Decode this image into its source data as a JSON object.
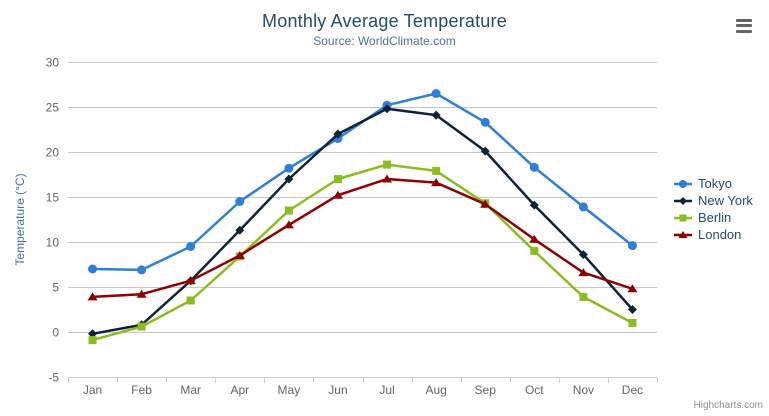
{
  "header": {
    "title": "Monthly Average Temperature",
    "subtitle": "Source: WorldClimate.com"
  },
  "credit": "Highcharts.com",
  "menu_icon": "hamburger-menu-icon",
  "colors": {
    "title_text": "#274b6d",
    "subtitle_text": "#4d759e",
    "axis_title_text": "#4572a7",
    "axis_label_text": "#666666",
    "legend_text": "#274b6d",
    "grid_line": "#c8c8c8",
    "axis_line": "#c0d0e0",
    "credit_text": "#909090",
    "menu_icon_color": "#666666"
  },
  "chart_data": {
    "type": "line",
    "title": "Monthly Average Temperature",
    "subtitle": "Source: WorldClimate.com",
    "categories": [
      "Jan",
      "Feb",
      "Mar",
      "Apr",
      "May",
      "Jun",
      "Jul",
      "Aug",
      "Sep",
      "Oct",
      "Nov",
      "Dec"
    ],
    "xlabel": "",
    "ylabel": "Temperature (°C)",
    "ylim": [
      -5,
      30
    ],
    "ytick_step": 5,
    "yticks": [
      -5,
      0,
      5,
      10,
      15,
      20,
      25,
      30
    ],
    "grid": true,
    "legend_position": "right",
    "series": [
      {
        "name": "Tokyo",
        "color": "#2f7ed8",
        "marker": "circle",
        "values": [
          7.0,
          6.9,
          9.5,
          14.5,
          18.2,
          21.5,
          25.2,
          26.5,
          23.3,
          18.3,
          13.9,
          9.6
        ]
      },
      {
        "name": "New York",
        "color": "#0d233a",
        "marker": "diamond",
        "values": [
          -0.2,
          0.8,
          5.7,
          11.3,
          17.0,
          22.0,
          24.8,
          24.1,
          20.1,
          14.1,
          8.6,
          2.5
        ]
      },
      {
        "name": "Berlin",
        "color": "#8bbc21",
        "marker": "square",
        "values": [
          -0.9,
          0.6,
          3.5,
          8.4,
          13.5,
          17.0,
          18.6,
          17.9,
          14.3,
          9.0,
          3.9,
          1.0
        ]
      },
      {
        "name": "London",
        "color": "#910000",
        "marker": "triangle",
        "values": [
          3.9,
          4.2,
          5.7,
          8.5,
          11.9,
          15.2,
          17.0,
          16.6,
          14.2,
          10.3,
          6.6,
          4.8
        ]
      }
    ]
  }
}
